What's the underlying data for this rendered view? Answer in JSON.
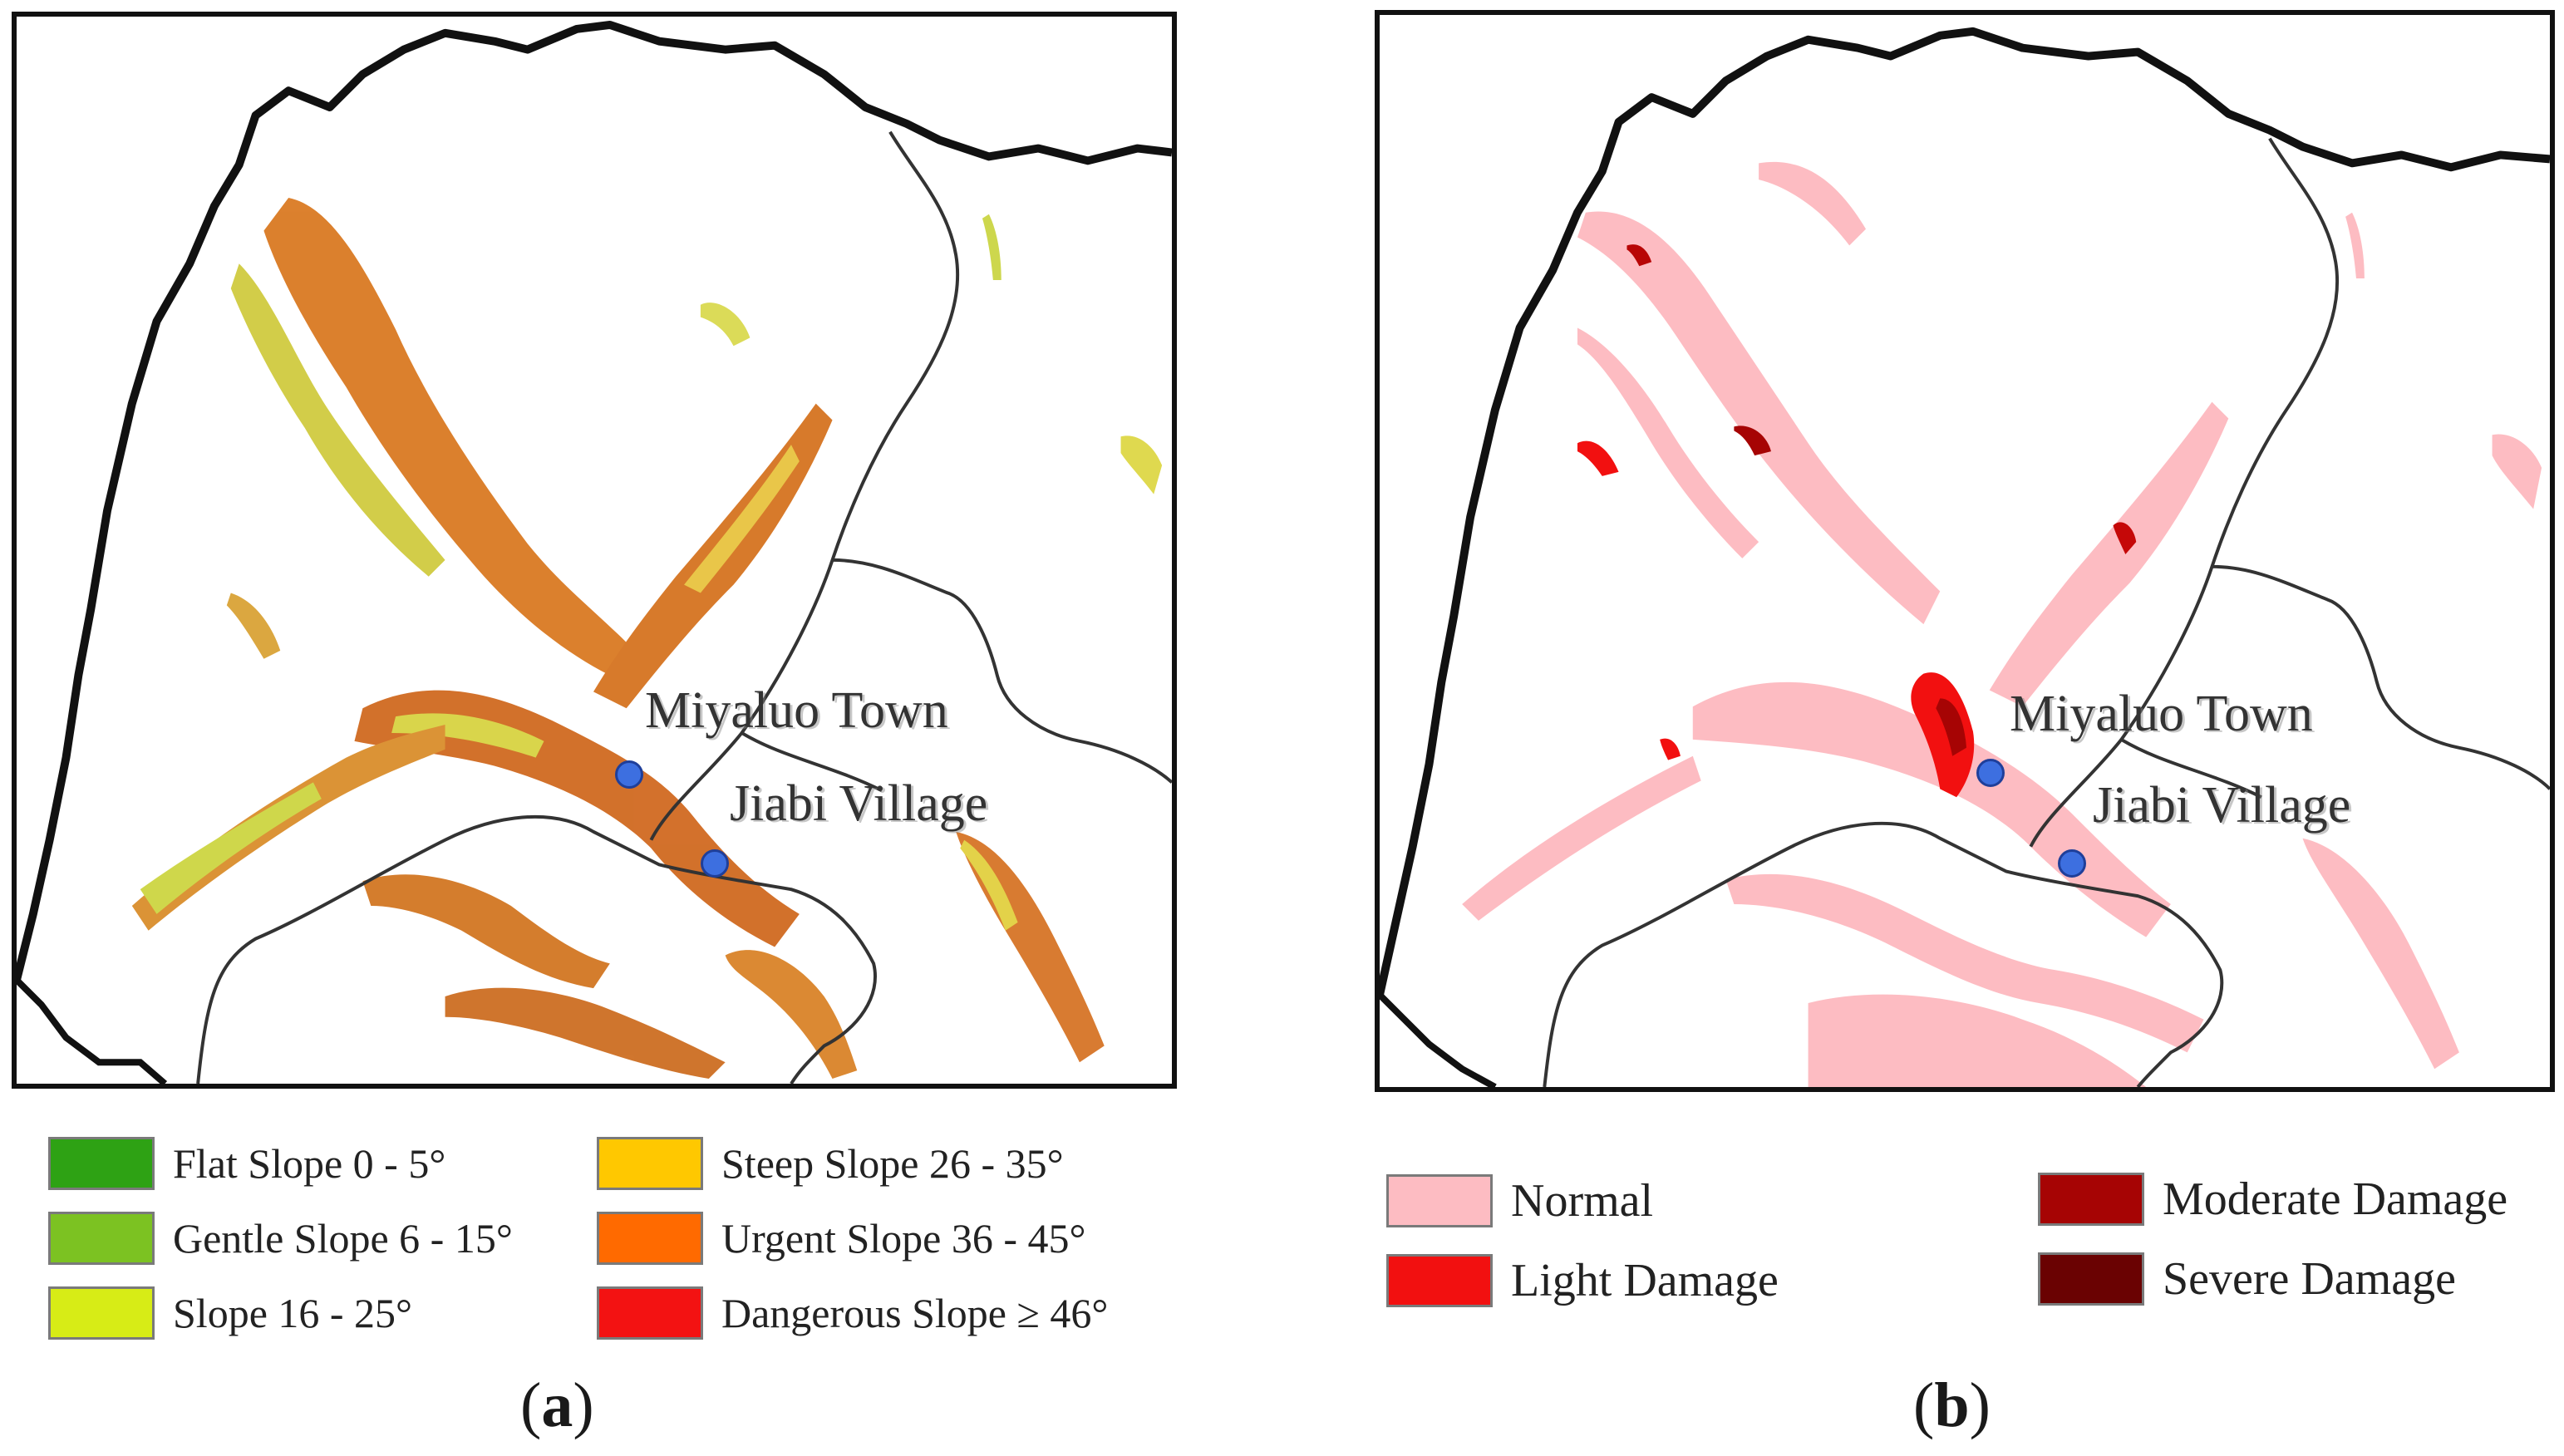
{
  "figure": {
    "panel_a": {
      "places": [
        {
          "id": "miyaluo",
          "label": "Miyaluo Town"
        },
        {
          "id": "jiabi",
          "label": "Jiabi Village"
        }
      ],
      "legend": [
        {
          "label": "Flat Slope 0 - 5°",
          "color": "#2ea214"
        },
        {
          "label": "Gentle Slope 6 - 15°",
          "color": "#7cc222"
        },
        {
          "label": "Slope 16 - 25°",
          "color": "#d7ec16"
        },
        {
          "label": "Steep Slope 26 - 35°",
          "color": "#ffc800"
        },
        {
          "label": "Urgent Slope 36 - 45°",
          "color": "#ff6a00"
        },
        {
          "label": "Dangerous Slope ≥ 46°",
          "color": "#f31212"
        }
      ],
      "caption": {
        "open": "(",
        "letter": "a",
        "close": ")"
      }
    },
    "panel_b": {
      "places": [
        {
          "id": "miyaluo",
          "label": "Miyaluo Town"
        },
        {
          "id": "jiabi",
          "label": "Jiabi Village"
        }
      ],
      "legend": [
        {
          "label": "Normal",
          "color": "#fdbcc2"
        },
        {
          "label": "Light Damage",
          "color": "#f21010"
        },
        {
          "label": "Moderate Damage",
          "color": "#a60404"
        },
        {
          "label": "Severe Damage",
          "color": "#6a0202"
        }
      ],
      "caption": {
        "open": "(",
        "letter": "b",
        "close": ")"
      }
    },
    "colors": {
      "boundary": "#111111",
      "river": "#333333",
      "marker": "#3d6fe0"
    }
  }
}
